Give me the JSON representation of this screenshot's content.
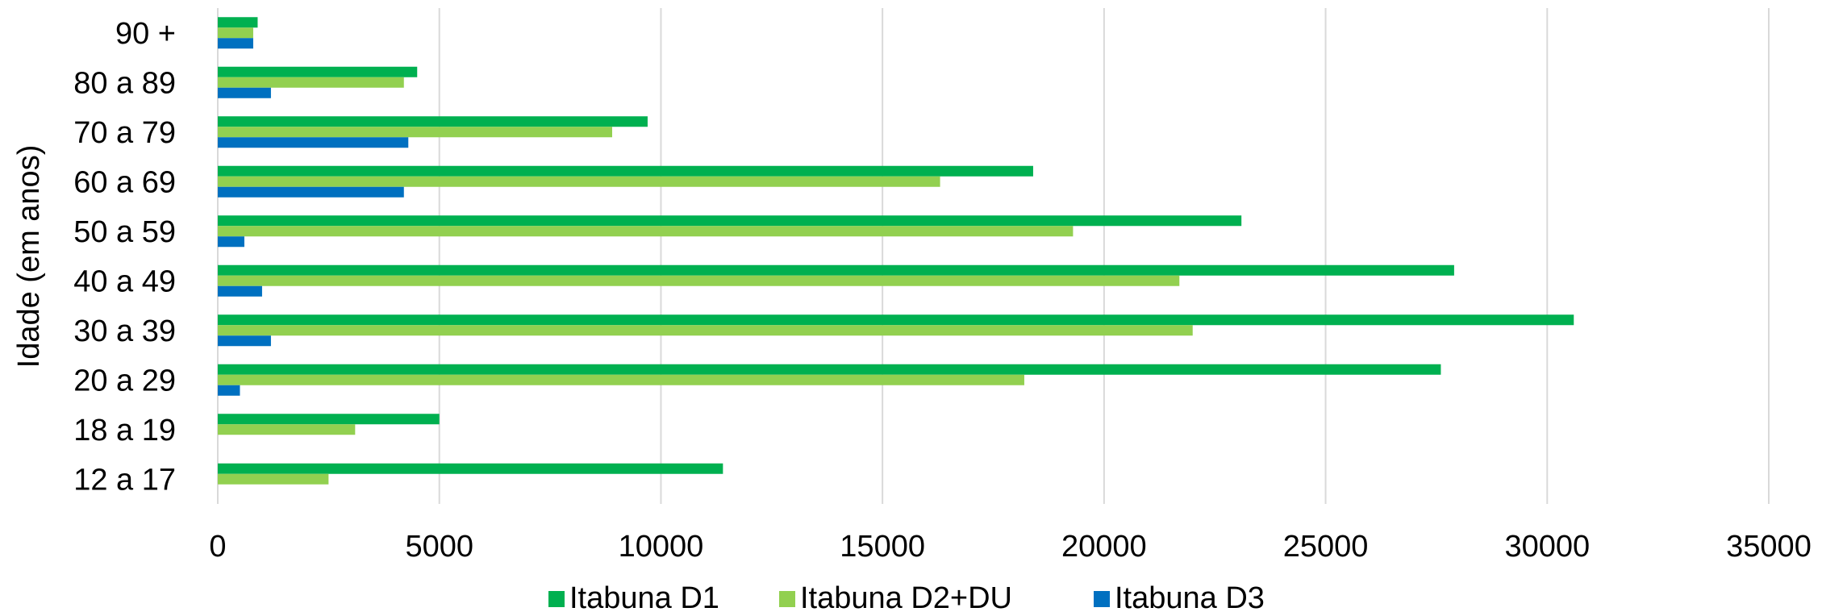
{
  "chart_data": {
    "type": "bar",
    "orientation": "horizontal",
    "title": "",
    "xlabel": "",
    "ylabel": "Idade (em anos)",
    "categories": [
      "12 a 17",
      "18 a 19",
      "20 a 29",
      "30 a 39",
      "40 a 49",
      "50 a 59",
      "60 a 69",
      "70 a 79",
      "80 a 89",
      "90  +"
    ],
    "series": [
      {
        "name": "Itabuna D1",
        "color": "#00b050",
        "values": [
          11400,
          5000,
          27600,
          30600,
          27900,
          23100,
          18400,
          9700,
          4500,
          900
        ]
      },
      {
        "name": "Itabuna D2+DU",
        "color": "#92d050",
        "values": [
          2500,
          3100,
          18200,
          22000,
          21700,
          19300,
          16300,
          8900,
          4200,
          800
        ]
      },
      {
        "name": "Itabuna D3",
        "color": "#0070c0",
        "values": [
          0,
          0,
          500,
          1200,
          1000,
          600,
          4200,
          4300,
          1200,
          800
        ]
      }
    ],
    "xlim": [
      0,
      35000
    ],
    "xticks": [
      "0",
      "5000",
      "10000",
      "15000",
      "20000",
      "25000",
      "30000",
      "35000"
    ],
    "grid": true,
    "legend_position": "bottom"
  }
}
